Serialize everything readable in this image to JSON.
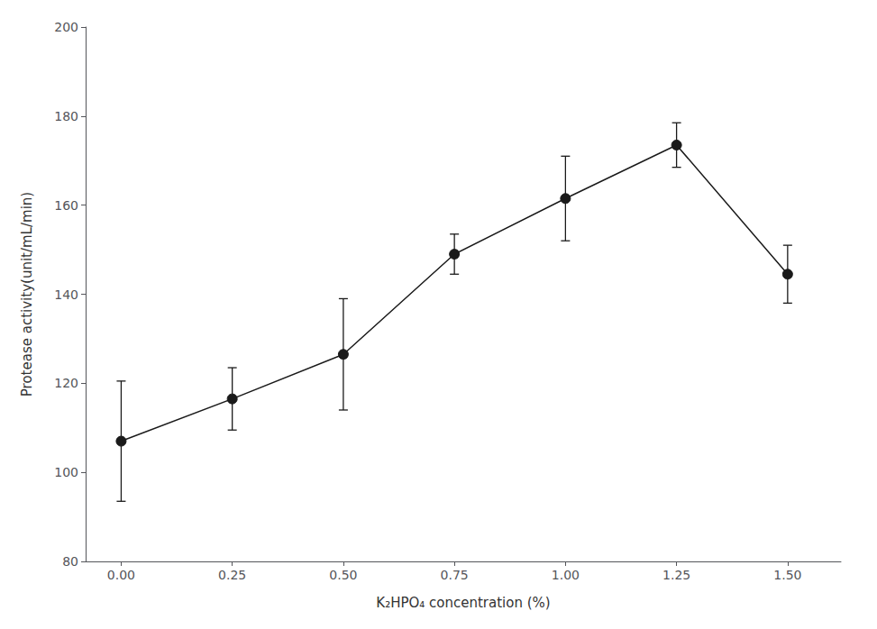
{
  "chart_data": {
    "type": "line",
    "xlabel": "K₂HPO₄ concentration (%)",
    "ylabel": "Protease activity(unit/mL/min)",
    "x": [
      0.0,
      0.25,
      0.5,
      0.75,
      1.0,
      1.25,
      1.5
    ],
    "values": [
      107.0,
      116.5,
      126.5,
      149.0,
      161.5,
      173.5,
      144.5
    ],
    "yerr": [
      13.5,
      7.0,
      12.5,
      4.5,
      9.5,
      5.0,
      6.5
    ],
    "color": "#1a1a1a",
    "marker": "circle",
    "xlim": [
      -0.08,
      1.62
    ],
    "ylim": [
      80,
      200
    ],
    "xticks": [
      {
        "value": 0,
        "label": "0.00"
      },
      0.25,
      {
        "value": 0.5,
        "label": "0.50"
      },
      0.75,
      {
        "value": 1,
        "label": "1.00"
      },
      1.25,
      {
        "value": 1.5,
        "label": "1.50"
      }
    ],
    "yticks": [
      80,
      100,
      120,
      140,
      160,
      180,
      200
    ],
    "grid": false
  }
}
